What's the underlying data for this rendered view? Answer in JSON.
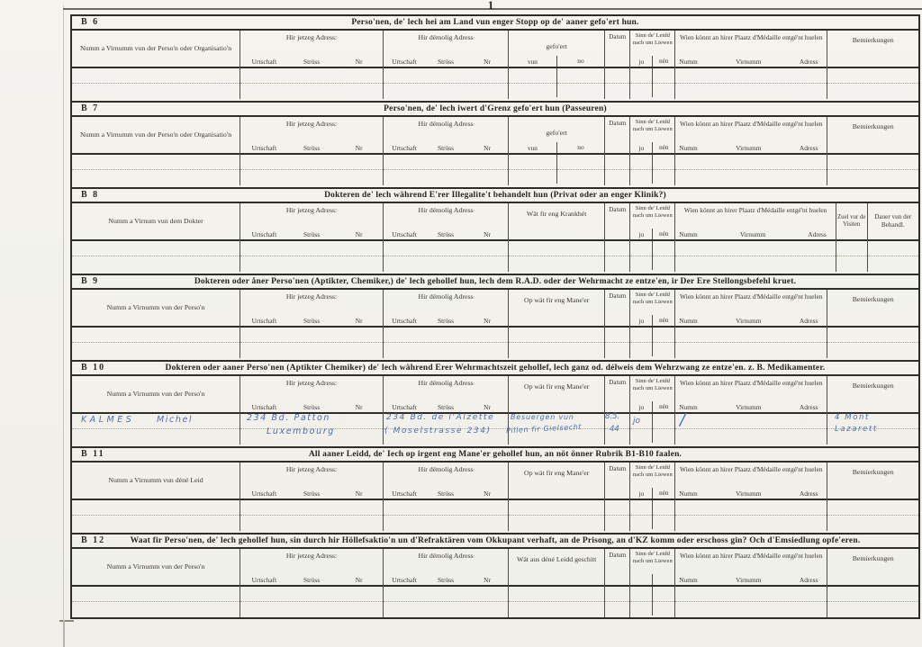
{
  "page": {
    "page_mark": "1"
  },
  "sections": [
    {
      "id": "B 6",
      "title": "Perso'nen, de' lech hei am Land vun enger Stopp op de' aaner gefo'ert hun.",
      "columns": [
        {
          "key": "name",
          "label": "Numm a Virnumm vun der Perso'n oder Organisatio'n"
        },
        {
          "key": "jetzeg",
          "label": "Hir jetzeg Adress:",
          "subs": [
            "Urtschaft",
            "Ströss",
            "Nr"
          ],
          "subs_style": "spread"
        },
        {
          "key": "demolig",
          "label": "Hir démolig Adress",
          "subs": [
            "Urtschaft",
            "Ströss",
            "Nr"
          ],
          "subs_style": "spread"
        },
        {
          "key": "gefoert",
          "label": "gefo'ert",
          "subs": [
            "vun",
            "no"
          ],
          "split": true
        },
        {
          "key": "datum",
          "label": "Datum"
        },
        {
          "key": "sinn",
          "label": "Sinn de' Leidd nach um Liewen",
          "subs": [
            "jo",
            "nén"
          ],
          "split": true
        },
        {
          "key": "medaille",
          "label": "Wien könnt an hirer Plaatz d'Médaille entgé'nt huelen",
          "subs": [
            "Numm",
            "Virnumm",
            "Adress"
          ],
          "subs_style": "edge"
        },
        {
          "key": "bem",
          "label": "Bemierkungen"
        }
      ]
    },
    {
      "id": "B 7",
      "title": "Perso'nen, de' lech iwert d'Grenz gefo'ert hun (Passeuren)",
      "columns": [
        {
          "key": "name",
          "label": "Numm a Virnumm vun der Perso'n oder Organisatio'n"
        },
        {
          "key": "jetzeg",
          "label": "Hir jetzeg Adress:",
          "subs": [
            "Urtschaft",
            "Ströss",
            "Nr"
          ],
          "subs_style": "spread"
        },
        {
          "key": "demolig",
          "label": "Hir démolig Adress",
          "subs": [
            "Urtschaft",
            "Ströss",
            "Nr"
          ],
          "subs_style": "spread"
        },
        {
          "key": "gefoert",
          "label": "gefo'ert",
          "subs": [
            "vun",
            "no"
          ],
          "split": true
        },
        {
          "key": "datum",
          "label": "Datum"
        },
        {
          "key": "sinn",
          "label": "Sinn de' Leidd nach um Liewen",
          "subs": [
            "jo",
            "nén"
          ],
          "split": true
        },
        {
          "key": "medaille",
          "label": "Wien könnt an hirer Plaatz d'Médaille entgé'nt huelen",
          "subs": [
            "Numm",
            "Virnumm",
            "Adress"
          ],
          "subs_style": "edge"
        },
        {
          "key": "bem",
          "label": "Bemierkungen"
        }
      ]
    },
    {
      "id": "B 8",
      "title": "Dokteren de' lech während E'rer Illegalite't behandelt hun (Privat oder an enger Klinik?)",
      "columns": [
        {
          "key": "name",
          "label": "Numm a Virnum vun dem Dokter"
        },
        {
          "key": "jetzeg",
          "label": "Hir jetzeg Adress:",
          "subs": [
            "Urtschaft",
            "Ströss",
            "Nr"
          ],
          "subs_style": "spread"
        },
        {
          "key": "demolig",
          "label": "Hir démolig Adress",
          "subs": [
            "Urtschaft",
            "Ströss",
            "Nr"
          ],
          "subs_style": "spread"
        },
        {
          "key": "middle",
          "label": "Wät fir eng Krankhét"
        },
        {
          "key": "datum",
          "label": "Datum"
        },
        {
          "key": "sinn",
          "label": "Sinn de' Leidd nach um Liewen",
          "subs": [
            "jo",
            "nén"
          ],
          "split": true
        },
        {
          "key": "medaille8",
          "label": "Wien könnt an hirer Plaatz d'Médaille entgé'nt huelen",
          "subs": [
            "Numm",
            "Virnumm",
            "Adress"
          ],
          "subs_style": "edge"
        },
        {
          "key": "zuel",
          "label": "Zuel vur de Visiten"
        },
        {
          "key": "dauer",
          "label": "Dauer vun der Behandl."
        }
      ]
    },
    {
      "id": "B 9",
      "title": "Dokteren oder åner Perso'nen (Aptikter, Chemiker,) de' lech gehollef hun, lech dem R.A.D. oder der Wehrmacht ze entze'en, ir Der Ere Stellongsbefehl kruet.",
      "columns": [
        {
          "key": "name",
          "label": "Numm a Virnumm vun der Perso'n"
        },
        {
          "key": "jetzeg",
          "label": "Hir jetzeg Adress:",
          "subs": [
            "Urtschaft",
            "Ströss",
            "Nr"
          ],
          "subs_style": "spread"
        },
        {
          "key": "demolig",
          "label": "Hir démolig Adress",
          "subs": [
            "Urtschaft",
            "Ströss",
            "Nr"
          ],
          "subs_style": "spread"
        },
        {
          "key": "middle",
          "label": "Op wät fir eng Mane'er"
        },
        {
          "key": "datum",
          "label": "Datum"
        },
        {
          "key": "sinn",
          "label": "Sinn de' Leidd nach um Liewen",
          "subs": [
            "jo",
            "nén"
          ],
          "split": true
        },
        {
          "key": "medaille",
          "label": "Wien könnt an hirer Plaatz d'Médaille entgé'nt huelen",
          "subs": [
            "Numm",
            "Virnumm",
            "Adress"
          ],
          "subs_style": "edge"
        },
        {
          "key": "bem",
          "label": "Bemierkungen"
        }
      ]
    },
    {
      "id": "B 10",
      "title": "Dokteren oder aaner Perso'nen (Aptikter Chemiker) de' lech während Erer Wehrmachtszeit gehollef, lech ganz od. délweis dem Wehrzwang ze entze'en. z. B. Medikamenter.",
      "columns": [
        {
          "key": "name",
          "label": "Numm a Virnumm vun der Perso'n"
        },
        {
          "key": "jetzeg",
          "label": "Hir jetzeg Adress:",
          "subs": [
            "Urtschaft",
            "Ströss",
            "Nr"
          ],
          "subs_style": "spread"
        },
        {
          "key": "demolig",
          "label": "Hir démolig Adress",
          "subs": [
            "Urtschaft",
            "Ströss",
            "Nr"
          ],
          "subs_style": "spread"
        },
        {
          "key": "middle",
          "label": "Op wät fir eng Mane'er"
        },
        {
          "key": "datum",
          "label": "Datum"
        },
        {
          "key": "sinn",
          "label": "Sinn de' Leidd nach um Liewen",
          "subs": [
            "jo",
            "nén"
          ],
          "split": true
        },
        {
          "key": "medaille",
          "label": "Wien könnt an hirer Plaatz d'Médaille entgé'nt huelen",
          "subs": [
            "Numm",
            "Virnumm",
            "Adress"
          ],
          "subs_style": "edge"
        },
        {
          "key": "bem",
          "label": "Bemierkungen"
        }
      ]
    },
    {
      "id": "B 11",
      "title": "All aaner Leidd, de' Iech op irgent eng Mane'er gehollef hun, an nöt önner Rubrik B1-B10 faalen.",
      "columns": [
        {
          "key": "name",
          "label": "Numm a Virnumm vun déné Leid"
        },
        {
          "key": "jetzeg",
          "label": "Hir jetzeg Adress:",
          "subs": [
            "Urtschaft",
            "Ströss",
            "Nr"
          ],
          "subs_style": "spread"
        },
        {
          "key": "demolig",
          "label": "Hir démolig Adress",
          "subs": [
            "Urtschaft",
            "Ströss",
            "Nr"
          ],
          "subs_style": "spread"
        },
        {
          "key": "middle",
          "label": "Op wät fir eng Mane'er"
        },
        {
          "key": "datum",
          "label": "Datum"
        },
        {
          "key": "sinn",
          "label": "Sinn de' Leidd nach um Liewen",
          "subs": [
            "jo",
            "nén"
          ],
          "split": true
        },
        {
          "key": "medaille",
          "label": "Wien könnt an hirer Plaatz d'Médaille entgé'nt huelen",
          "subs": [
            "Numm",
            "Virnumm",
            "Adress"
          ],
          "subs_style": "edge"
        },
        {
          "key": "bem",
          "label": "Bemierkungen"
        }
      ]
    },
    {
      "id": "B 12",
      "title": "Waat fir Perso'nen, de' lech gehollef hun, sin durch hir Höllefsaktio'n un d'Refraktären vom Okkupant verhaft, an de Prisong, an d'KZ komm oder erschoss gin? Och d'Emsiedlung opfe'eren.",
      "columns": [
        {
          "key": "name",
          "label": "Numm a Virnumm vun der Perso'n"
        },
        {
          "key": "jetzeg",
          "label": "Hir jetzeg Adress:",
          "subs": [
            "Urtschaft",
            "Ströss",
            "Nr"
          ],
          "subs_style": "spread"
        },
        {
          "key": "demolig",
          "label": "Hir démolig Adress",
          "subs": [
            "Urtschaft",
            "Ströss",
            "Nr"
          ],
          "subs_style": "spread"
        },
        {
          "key": "middle",
          "label": "Wät aus déné Leidd geschitt"
        },
        {
          "key": "datum",
          "label": "Datum"
        },
        {
          "key": "sinn",
          "label": "Sinn de' Leidd nach um Liewen",
          "subs": [
            "",
            ""
          ],
          "split": true
        },
        {
          "key": "medaille",
          "label": "Wien könnt an hirer Plaatz d'Médaille entgé'nt huelen",
          "subs": [
            "Numm",
            "Virnumm",
            "Adress"
          ],
          "subs_style": "edge"
        },
        {
          "key": "bem",
          "label": "Bemierkungen"
        }
      ]
    }
  ],
  "handwriting": {
    "section_ref": "B 10",
    "name_last": "KALMES",
    "name_first": "Michel",
    "jetzeg_line1": "234 Bd. Patton",
    "jetzeg_line2": "Luxembourg",
    "demolig_line1": "234 Bd. de l'Alzette",
    "demolig_line2": "( Moselstrasse 234)",
    "maneer_line1": "Besuergen vun",
    "maneer_line2": "Pillen fir Gielsecht",
    "datum_line1": "8.5.",
    "datum_line2": "44",
    "liewen": "jo",
    "medaille_mark": "/",
    "bem_line1": "4 Mont",
    "bem_line2": "Lazarett"
  }
}
